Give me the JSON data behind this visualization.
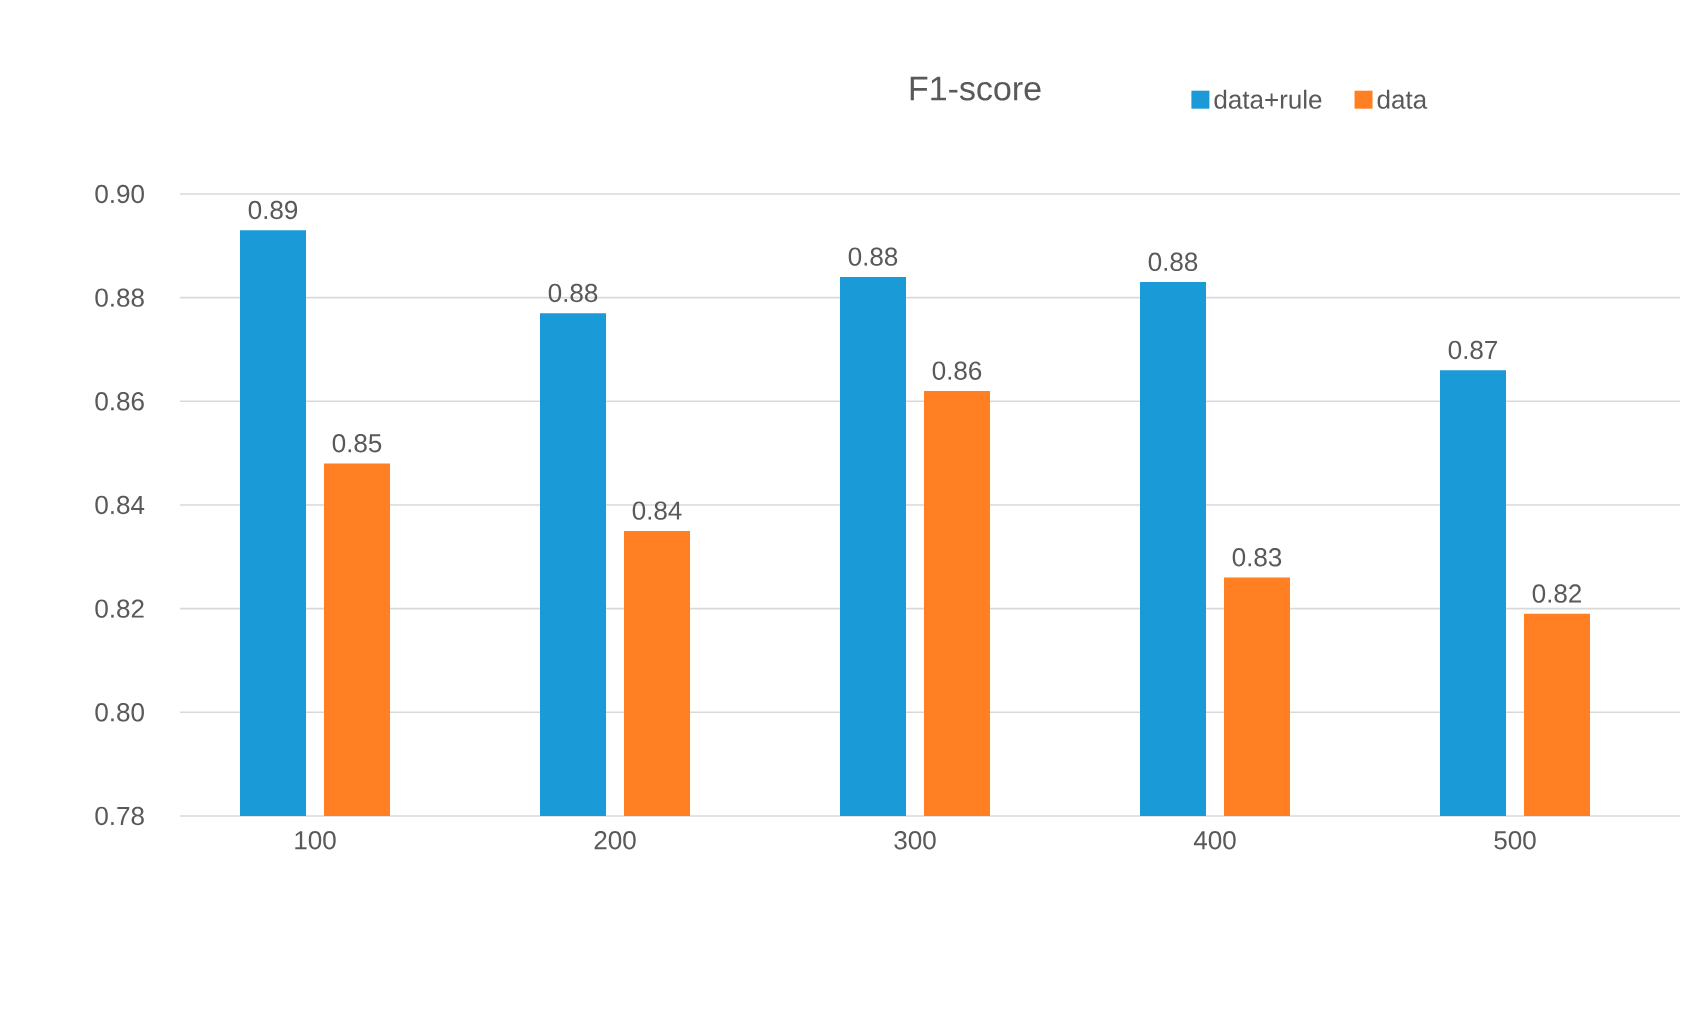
{
  "chart_data": {
    "type": "bar",
    "title": "F1-score",
    "categories": [
      "100",
      "200",
      "300",
      "400",
      "500"
    ],
    "series": [
      {
        "name": "data+rule",
        "color": "#1a9ad6",
        "values": [
          0.893,
          0.877,
          0.884,
          0.883,
          0.866
        ],
        "value_labels": [
          "0.89",
          "0.88",
          "0.88",
          "0.88",
          "0.87"
        ]
      },
      {
        "name": "data",
        "color": "#ff7f22",
        "values": [
          0.848,
          0.835,
          0.862,
          0.826,
          0.819
        ],
        "value_labels": [
          "0.85",
          "0.84",
          "0.86",
          "0.83",
          "0.82"
        ]
      }
    ],
    "ylim": [
      0.78,
      0.9
    ],
    "yticks": [
      {
        "value": 0.78,
        "label": "0.78"
      },
      {
        "value": 0.8,
        "label": "0.80"
      },
      {
        "value": 0.82,
        "label": "0.82"
      },
      {
        "value": 0.84,
        "label": "0.84"
      },
      {
        "value": 0.86,
        "label": "0.86"
      },
      {
        "value": 0.88,
        "label": "0.88"
      },
      {
        "value": 0.9,
        "label": "0.90"
      }
    ],
    "grid": "y",
    "legend": "top right"
  }
}
